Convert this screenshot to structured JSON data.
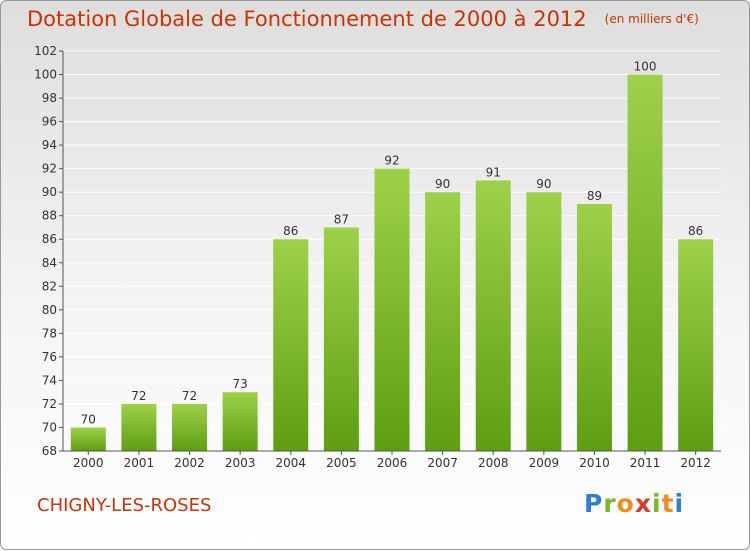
{
  "title": "Dotation Globale de Fonctionnement de 2000 à 2012",
  "unit": "(en milliers d'€)",
  "commune": "CHIGNY-LES-ROSES",
  "logo_text": "Proxiti",
  "colors": {
    "title": "#cc3300",
    "bar_light": "#9ed14a",
    "bar_dark": "#5e9e10",
    "grid": "#ffffff"
  },
  "chart_data": {
    "type": "bar",
    "title": "Dotation Globale de Fonctionnement de 2000 à 2012",
    "subtitle": "(en milliers d'€)",
    "xlabel": "",
    "ylabel": "",
    "categories": [
      "2000",
      "2001",
      "2002",
      "2003",
      "2004",
      "2005",
      "2006",
      "2007",
      "2008",
      "2009",
      "2010",
      "2011",
      "2012"
    ],
    "values": [
      70,
      72,
      72,
      73,
      86,
      87,
      92,
      90,
      91,
      90,
      89,
      100,
      86
    ],
    "ylim": [
      68,
      102
    ],
    "yticks": [
      68,
      70,
      72,
      74,
      76,
      78,
      80,
      82,
      84,
      86,
      88,
      90,
      92,
      94,
      96,
      98,
      100,
      102
    ],
    "grid": true,
    "legend": "none"
  }
}
